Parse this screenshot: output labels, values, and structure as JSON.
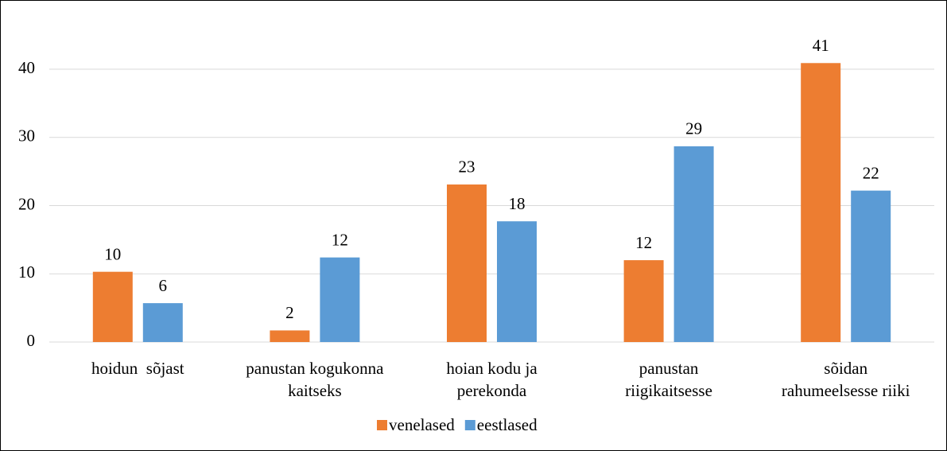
{
  "chart_data": {
    "type": "bar",
    "categories": [
      "hoidun  sõjast",
      "panustan kogukonna\nkaitseks",
      "hoian kodu ja\nperekonda",
      "panustan\nriigikaitsesse",
      "sõidan\nrahumeelsesse riiki"
    ],
    "series": [
      {
        "name": "venelased",
        "color": "#ed7d31",
        "values": [
          10.3,
          1.7,
          23.1,
          12.0,
          40.9
        ],
        "value_labels": [
          "10",
          "2",
          "23",
          "12",
          "41"
        ]
      },
      {
        "name": "eestlased",
        "color": "#5b9bd5",
        "values": [
          5.7,
          12.4,
          17.7,
          28.7,
          22.2
        ],
        "value_labels": [
          "6",
          "12",
          "18",
          "29",
          "22"
        ]
      }
    ],
    "ylim": [
      0,
      45
    ],
    "yticks": [
      0,
      10,
      20,
      30,
      40
    ],
    "grid": true,
    "legend": "bottom"
  }
}
